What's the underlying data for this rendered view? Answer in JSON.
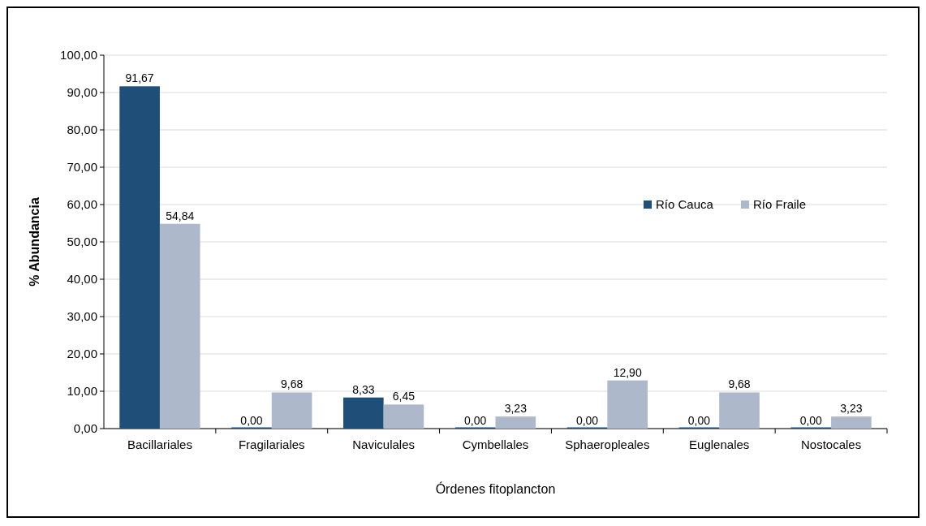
{
  "chart_data": {
    "type": "bar",
    "xlabel": "Órdenes fitoplancton",
    "ylabel": "% Abundancia",
    "categories": [
      "Bacillariales",
      "Fragilariales",
      "Naviculales",
      "Cymbellales",
      "Sphaeropleales",
      "Euglenales",
      "Nostocales"
    ],
    "series": [
      {
        "name": "Río Cauca",
        "color": "#1f4e79",
        "values": [
          91.67,
          0,
          8.33,
          0,
          0,
          0,
          0
        ],
        "value_labels": [
          "91,67",
          "0,00",
          "8,33",
          "0,00",
          "0,00",
          "0,00",
          "0,00"
        ]
      },
      {
        "name": "Río Fraile",
        "color": "#adb9ca",
        "values": [
          54.84,
          9.68,
          6.45,
          3.23,
          12.9,
          9.68,
          3.23
        ],
        "value_labels": [
          "54,84",
          "9,68",
          "6,45",
          "3,23",
          "12,90",
          "9,68",
          "3,23"
        ]
      }
    ],
    "ylim": [
      0,
      100
    ],
    "yticks": [
      {
        "value": 0,
        "label": "0,00"
      },
      {
        "value": 10,
        "label": "10,00"
      },
      {
        "value": 20,
        "label": "20,00"
      },
      {
        "value": 30,
        "label": "30,00"
      },
      {
        "value": 40,
        "label": "40,00"
      },
      {
        "value": 50,
        "label": "50,00"
      },
      {
        "value": 60,
        "label": "60,00"
      },
      {
        "value": 70,
        "label": "70,00"
      },
      {
        "value": 80,
        "label": "80,00"
      },
      {
        "value": 90,
        "label": "90,00"
      },
      {
        "value": 100,
        "label": "100,00"
      }
    ],
    "grid": "y",
    "legend": "right"
  }
}
